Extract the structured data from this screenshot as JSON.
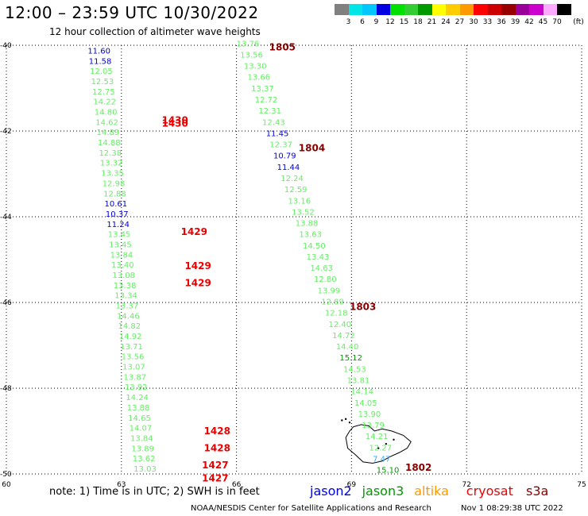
{
  "header": {
    "title": "12:00 – 23:59 UTC 10/30/2022",
    "subtitle": "12 hour collection of altimeter wave heights"
  },
  "scale": {
    "colors": [
      "#808080",
      "#00e5e5",
      "#00c8ff",
      "#0000e0",
      "#00e000",
      "#33cc33",
      "#009900",
      "#ffff00",
      "#ffcc00",
      "#ff9900",
      "#ff0000",
      "#cc0000",
      "#990000",
      "#990099",
      "#cc00cc",
      "#ffaaff",
      "#000000"
    ],
    "labels": [
      "3",
      "6",
      "9",
      "12",
      "15",
      "18",
      "21",
      "24",
      "27",
      "30",
      "33",
      "36",
      "39",
      "42",
      "45",
      "70"
    ],
    "unit": "(ft)"
  },
  "map": {
    "lon_min": 60,
    "lon_max": 75,
    "lat_min": -50,
    "lat_max": -40,
    "lon_ticks": [
      "60",
      "63",
      "66",
      "69",
      "72",
      "75"
    ],
    "lat_ticks": [
      "-40",
      "-42",
      "-44",
      "-46",
      "-48",
      "-50"
    ]
  },
  "tracks": {
    "green": "#66ee66",
    "blue": "#0000dd",
    "darkgreen": "#009900",
    "cyan": "#33aaff",
    "red": "#ee0000",
    "maroon": "#880000",
    "track1": [
      [
        "11.60",
        "blue"
      ],
      [
        "11.58",
        "blue"
      ],
      [
        "12.05",
        "green"
      ],
      [
        "12.53",
        "green"
      ],
      [
        "12.75",
        "green"
      ],
      [
        "14.22",
        "green"
      ],
      [
        "14.80",
        "green"
      ],
      [
        "14.62",
        "green"
      ],
      [
        "14.89",
        "green"
      ],
      [
        "14.88",
        "green"
      ],
      [
        "12.38",
        "green"
      ],
      [
        "13.32",
        "green"
      ],
      [
        "13.35",
        "green"
      ],
      [
        "12.98",
        "green"
      ],
      [
        "12.88",
        "green"
      ],
      [
        "10.61",
        "blue"
      ],
      [
        "10.37",
        "blue"
      ],
      [
        "11.24",
        "blue"
      ],
      [
        "13.45",
        "green"
      ],
      [
        "13.45",
        "green"
      ],
      [
        "13.84",
        "green"
      ],
      [
        "13.40",
        "green"
      ],
      [
        "13.08",
        "green"
      ],
      [
        "13.38",
        "green"
      ],
      [
        "13.34",
        "green"
      ],
      [
        "13.37",
        "green"
      ],
      [
        "14.46",
        "green"
      ],
      [
        "14.82",
        "green"
      ],
      [
        "14.92",
        "green"
      ],
      [
        "13.71",
        "green"
      ],
      [
        "13.56",
        "green"
      ],
      [
        "13.07",
        "green"
      ],
      [
        "13.87",
        "green"
      ],
      [
        "13.92",
        "green"
      ],
      [
        "14.24",
        "green"
      ],
      [
        "13.88",
        "green"
      ],
      [
        "14.65",
        "green"
      ],
      [
        "14.07",
        "green"
      ],
      [
        "13.84",
        "green"
      ],
      [
        "13.89",
        "green"
      ],
      [
        "13.62",
        "green"
      ],
      [
        "13.03",
        "green"
      ]
    ],
    "track2": [
      [
        "13.76",
        "green"
      ],
      [
        "13.56",
        "green"
      ],
      [
        "13.30",
        "green"
      ],
      [
        "13.66",
        "green"
      ],
      [
        "13.37",
        "green"
      ],
      [
        "12.72",
        "green"
      ],
      [
        "12.31",
        "green"
      ],
      [
        "12.43",
        "green"
      ],
      [
        "11.45",
        "blue"
      ],
      [
        "12.37",
        "green"
      ],
      [
        "10.79",
        "blue"
      ],
      [
        "11.44",
        "blue"
      ],
      [
        "12.24",
        "green"
      ],
      [
        "12.59",
        "green"
      ],
      [
        "13.16",
        "green"
      ],
      [
        "13.52",
        "green"
      ],
      [
        "13.88",
        "green"
      ],
      [
        "13.63",
        "green"
      ],
      [
        "14.50",
        "green"
      ],
      [
        "13.43",
        "green"
      ],
      [
        "14.63",
        "green"
      ],
      [
        "12.80",
        "green"
      ],
      [
        "13.99",
        "green"
      ],
      [
        "12.89",
        "green"
      ],
      [
        "12.18",
        "green"
      ],
      [
        "12.40",
        "green"
      ],
      [
        "14.72",
        "green"
      ],
      [
        "14.40",
        "green"
      ],
      [
        "15.12",
        "darkgreen"
      ],
      [
        "14.53",
        "green"
      ],
      [
        "13.81",
        "green"
      ],
      [
        "14.14",
        "green"
      ],
      [
        "14.05",
        "green"
      ],
      [
        "13.90",
        "green"
      ],
      [
        "13.79",
        "green"
      ],
      [
        "14.21",
        "green"
      ],
      [
        "12.27",
        "green"
      ],
      [
        "7.47",
        "cyan"
      ],
      [
        "15.10",
        "darkgreen"
      ]
    ],
    "time_labels_left": [
      "1430",
      "1430",
      "1429",
      "1429",
      "1429",
      "1428",
      "1428",
      "1427",
      "1427"
    ],
    "time_labels_right": [
      "1805",
      "1804",
      "1803",
      "1802"
    ]
  },
  "footer": {
    "notes": "note:  1) Time is in UTC;  2) SWH is in feet",
    "satellites": [
      {
        "name": "jason2",
        "color": "#0000dd"
      },
      {
        "name": "jason3",
        "color": "#009900"
      },
      {
        "name": "altika",
        "color": "#ff9900"
      },
      {
        "name": "cryosat",
        "color": "#ee0000"
      },
      {
        "name": "s3a",
        "color": "#880000"
      }
    ],
    "credit": "NOAA/NESDIS Center for Satellite Applications and Research",
    "timestamp": "Nov  1 08:29:38 UTC 2022"
  }
}
